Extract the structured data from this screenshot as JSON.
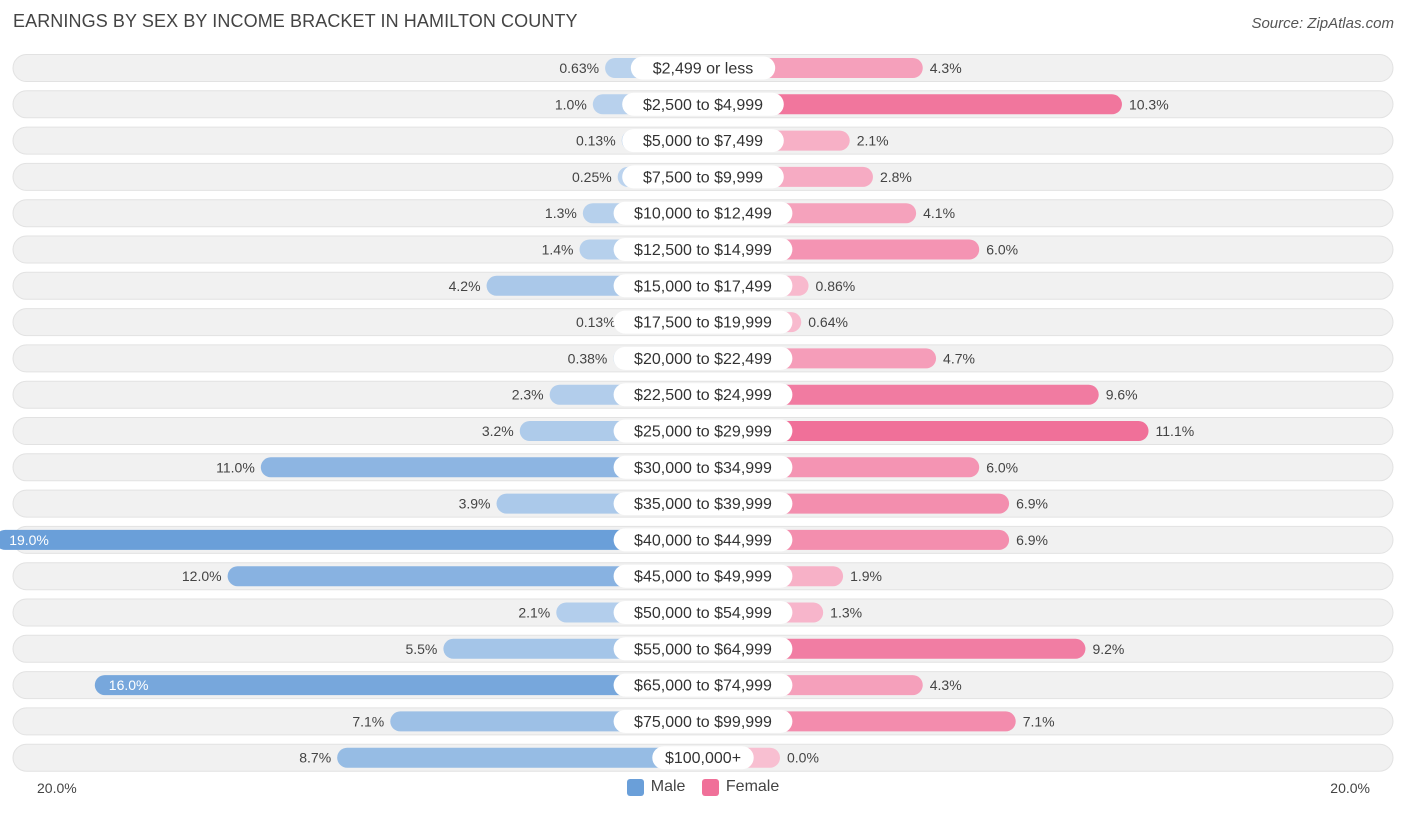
{
  "title": "EARNINGS BY SEX BY INCOME BRACKET IN HAMILTON COUNTY",
  "source": "Source: ZipAtlas.com",
  "colors": {
    "male": "#6a9fd9",
    "female": "#f07099"
  },
  "chart_data": {
    "type": "bar",
    "orientation": "horizontal-diverging",
    "categories": [
      "$2,499 or less",
      "$2,500 to $4,999",
      "$5,000 to $7,499",
      "$7,500 to $9,999",
      "$10,000 to $12,499",
      "$12,500 to $14,999",
      "$15,000 to $17,499",
      "$17,500 to $19,999",
      "$20,000 to $22,499",
      "$22,500 to $24,999",
      "$25,000 to $29,999",
      "$30,000 to $34,999",
      "$35,000 to $39,999",
      "$40,000 to $44,999",
      "$45,000 to $49,999",
      "$50,000 to $54,999",
      "$55,000 to $64,999",
      "$65,000 to $74,999",
      "$75,000 to $99,999",
      "$100,000+"
    ],
    "series": [
      {
        "name": "Male",
        "values": [
          0.63,
          1.0,
          0.13,
          0.25,
          1.3,
          1.4,
          4.2,
          0.13,
          0.38,
          2.3,
          3.2,
          11.0,
          3.9,
          19.0,
          12.0,
          2.1,
          5.5,
          16.0,
          7.1,
          8.7
        ],
        "labels": [
          "0.63%",
          "1.0%",
          "0.13%",
          "0.25%",
          "1.3%",
          "1.4%",
          "4.2%",
          "0.13%",
          "0.38%",
          "2.3%",
          "3.2%",
          "11.0%",
          "3.9%",
          "19.0%",
          "12.0%",
          "2.1%",
          "5.5%",
          "16.0%",
          "7.1%",
          "8.7%"
        ]
      },
      {
        "name": "Female",
        "values": [
          4.3,
          10.3,
          2.1,
          2.8,
          4.1,
          6.0,
          0.86,
          0.64,
          4.7,
          9.6,
          11.1,
          6.0,
          6.9,
          6.9,
          1.9,
          1.3,
          9.2,
          4.3,
          7.1,
          0.0
        ],
        "labels": [
          "4.3%",
          "10.3%",
          "2.1%",
          "2.8%",
          "4.1%",
          "6.0%",
          "0.86%",
          "0.64%",
          "4.7%",
          "9.6%",
          "11.1%",
          "6.0%",
          "6.9%",
          "6.9%",
          "1.9%",
          "1.3%",
          "9.2%",
          "4.3%",
          "7.1%",
          "0.0%"
        ]
      }
    ],
    "xlim": [
      -20.0,
      20.0
    ],
    "axis_labels": {
      "left": "20.0%",
      "right": "20.0%"
    },
    "legend": [
      "Male",
      "Female"
    ]
  }
}
